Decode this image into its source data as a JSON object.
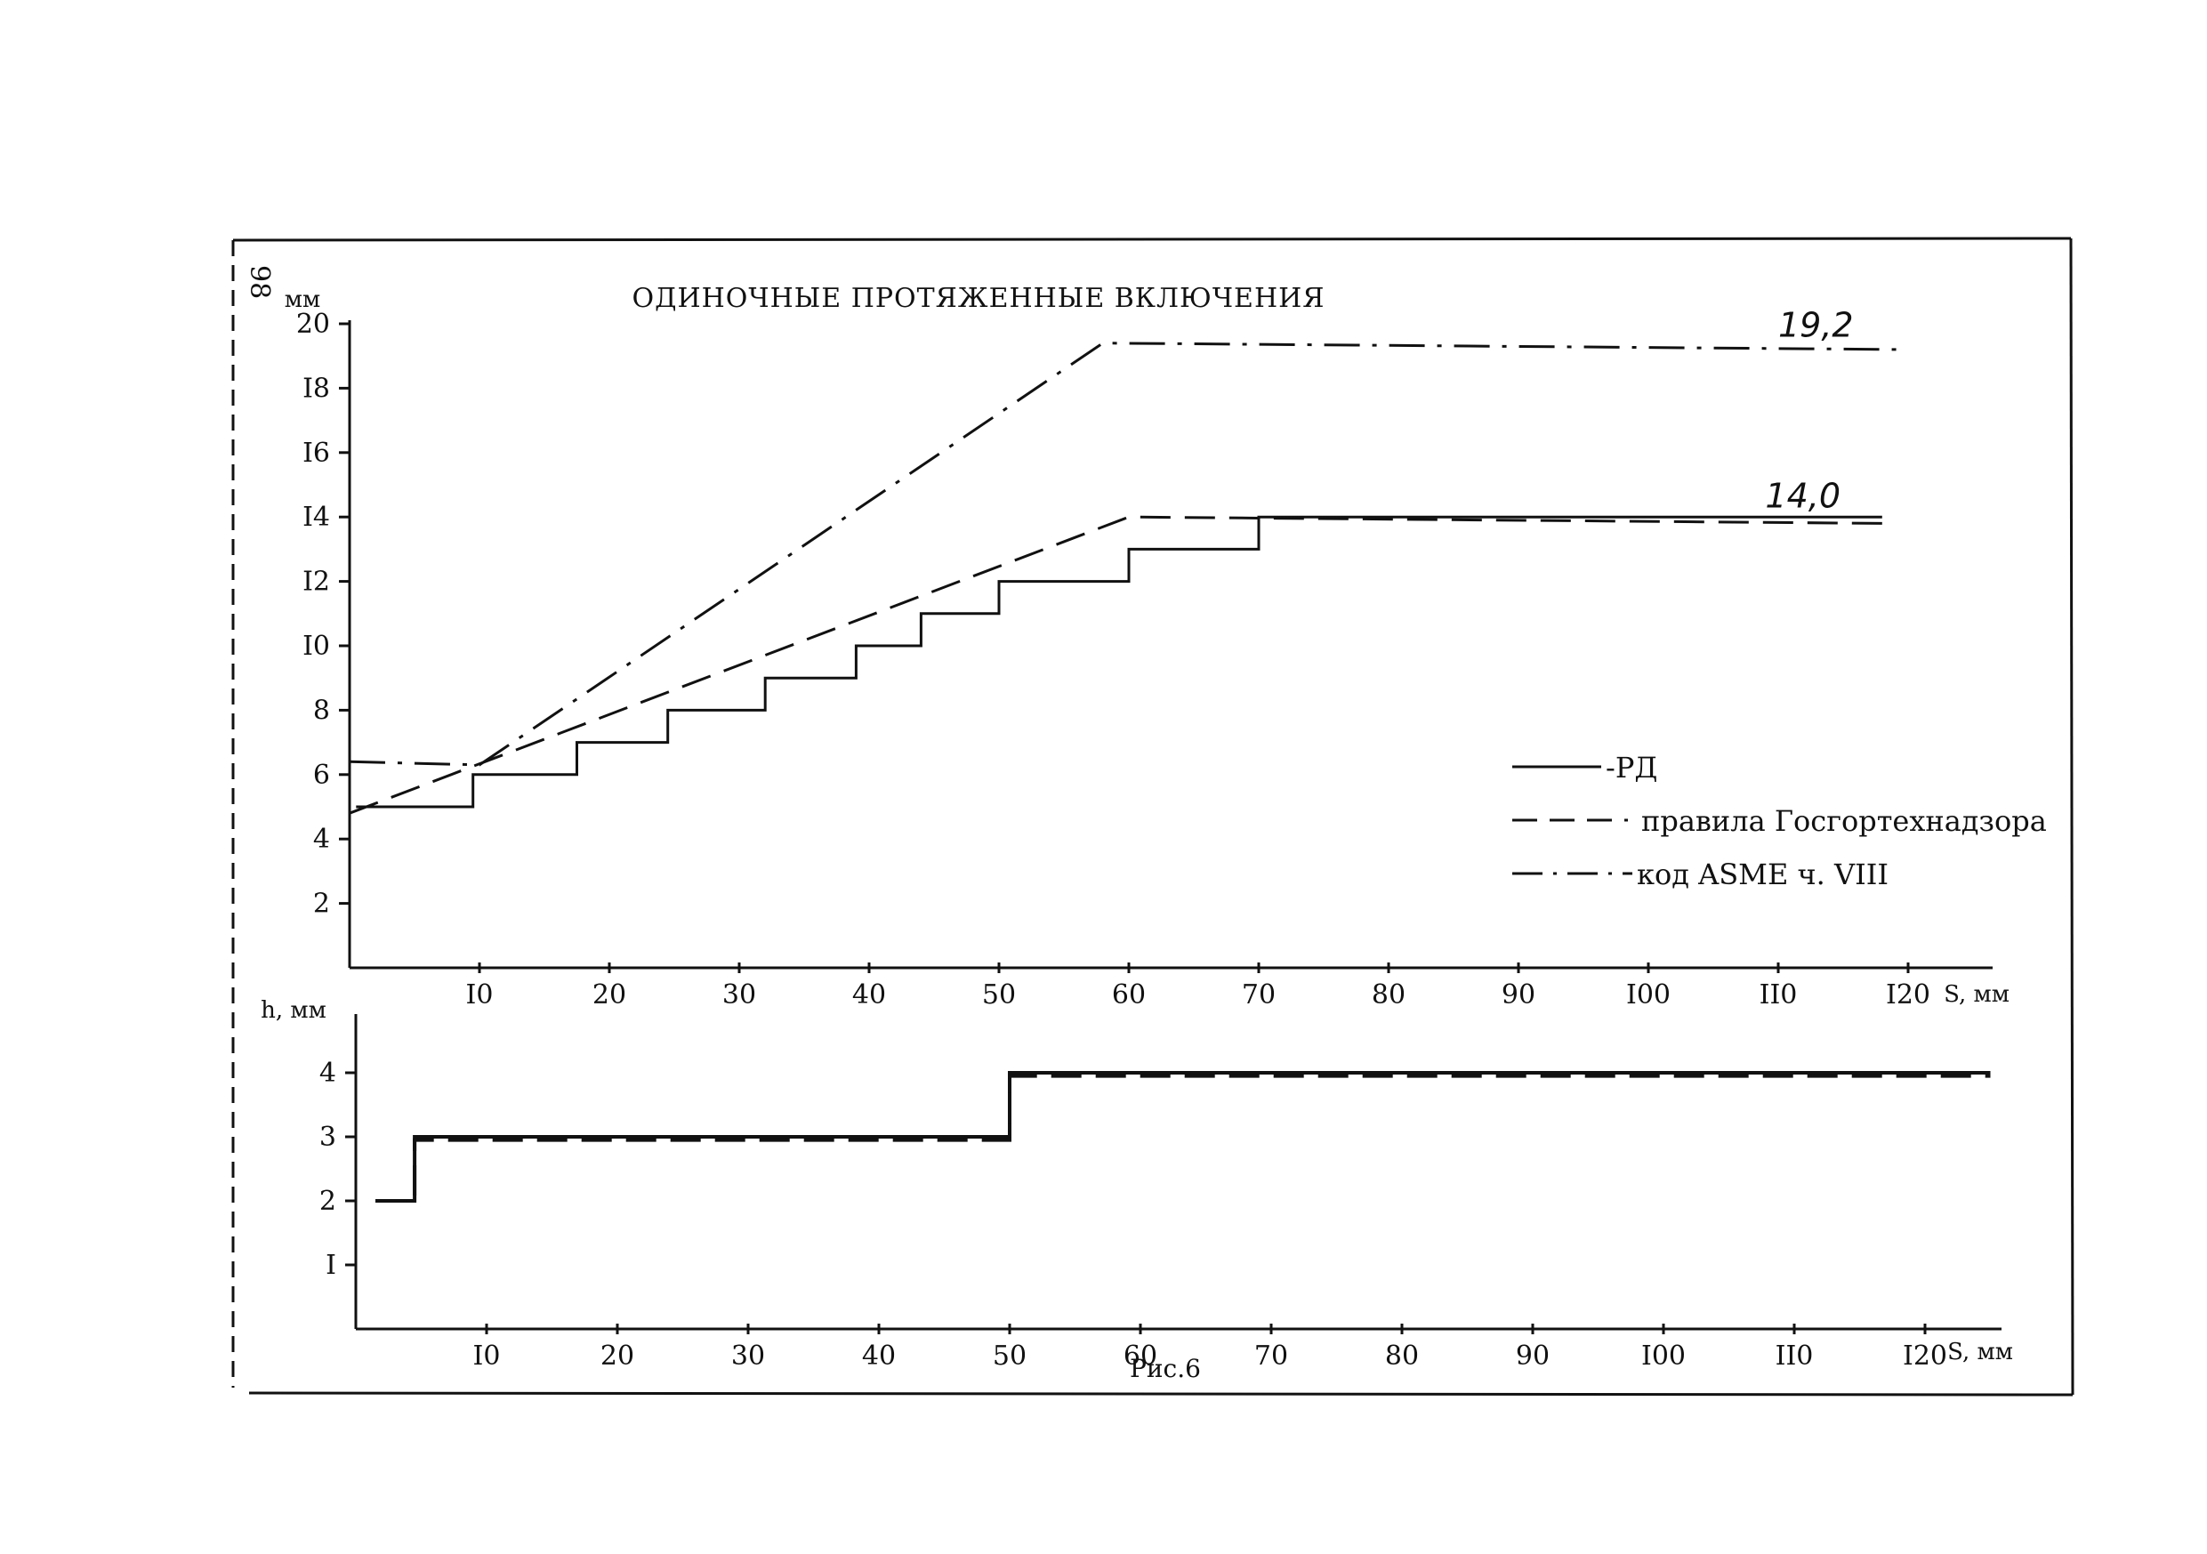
{
  "page": {
    "page_number": "98",
    "caption": "Рис.6"
  },
  "colors": {
    "ink": "#111111",
    "background": "#ffffff"
  },
  "chart_data": [
    {
      "type": "line",
      "title": "ОДИНОЧНЫЕ ПРОТЯЖЕННЫЕ ВКЛЮЧЕНИЯ",
      "ylabel": "мм",
      "xlabel": "S, мм",
      "xlim": [
        0,
        128
      ],
      "ylim": [
        0,
        21
      ],
      "xticks": [
        10,
        20,
        30,
        40,
        50,
        60,
        70,
        80,
        90,
        100,
        110,
        120
      ],
      "xtick_labels": [
        "I0",
        "20",
        "30",
        "40",
        "50",
        "60",
        "70",
        "80",
        "90",
        "I00",
        "II0",
        "I20"
      ],
      "yticks": [
        2,
        4,
        6,
        8,
        10,
        12,
        14,
        16,
        18,
        20
      ],
      "ytick_labels": [
        "2",
        "4",
        "6",
        "8",
        "I0",
        "I2",
        "I4",
        "I6",
        "I8",
        "20"
      ],
      "legend_position": "right",
      "series": [
        {
          "name": "-РД",
          "style": "solid",
          "x": [
            0.5,
            0.5,
            9.5,
            9.5,
            17.5,
            17.5,
            24.5,
            24.5,
            32,
            32,
            39,
            39,
            44,
            44,
            50,
            50,
            60,
            60,
            70,
            70,
            118
          ],
          "y": [
            5,
            5,
            5,
            6,
            6,
            7,
            7,
            8,
            8,
            9,
            9,
            10,
            10,
            11,
            11,
            12,
            12,
            13,
            13,
            14,
            14
          ]
        },
        {
          "name": "правила Госгортехнадзора",
          "style": "dashed",
          "x": [
            0,
            60,
            118
          ],
          "y": [
            4.8,
            14,
            13.8
          ]
        },
        {
          "name": "код ASME ч. VIII",
          "style": "dashdot",
          "x": [
            0,
            10,
            58,
            120
          ],
          "y": [
            6.4,
            6.3,
            19.4,
            19.2
          ]
        }
      ],
      "annotations": [
        {
          "text": "19,2",
          "x": 110,
          "y": 19.6
        },
        {
          "text": "14,0",
          "x": 109,
          "y": 14.3
        }
      ]
    },
    {
      "type": "line",
      "ylabel": "h, мм",
      "xlabel": "S, мм",
      "xlim": [
        0,
        128
      ],
      "ylim": [
        0,
        4.5
      ],
      "xticks": [
        10,
        20,
        30,
        40,
        50,
        60,
        70,
        80,
        90,
        100,
        110,
        120
      ],
      "xtick_labels": [
        "I0",
        "20",
        "30",
        "40",
        "50",
        "60",
        "70",
        "80",
        "90",
        "I00",
        "II0",
        "I20"
      ],
      "yticks": [
        1,
        2,
        3,
        4
      ],
      "ytick_labels": [
        "I",
        "2",
        "3",
        "4"
      ],
      "series": [
        {
          "name": "РД",
          "style": "solid",
          "x": [
            1.5,
            4.5,
            4.5,
            50,
            50,
            125
          ],
          "y": [
            2,
            2,
            3,
            3,
            4,
            4
          ]
        },
        {
          "name": "правила Госгортехнадзора",
          "style": "dashed",
          "x": [
            1.5,
            4.5,
            4.5,
            50,
            50,
            125
          ],
          "y": [
            2,
            2,
            2.95,
            2.95,
            3.95,
            3.95
          ]
        }
      ]
    }
  ]
}
